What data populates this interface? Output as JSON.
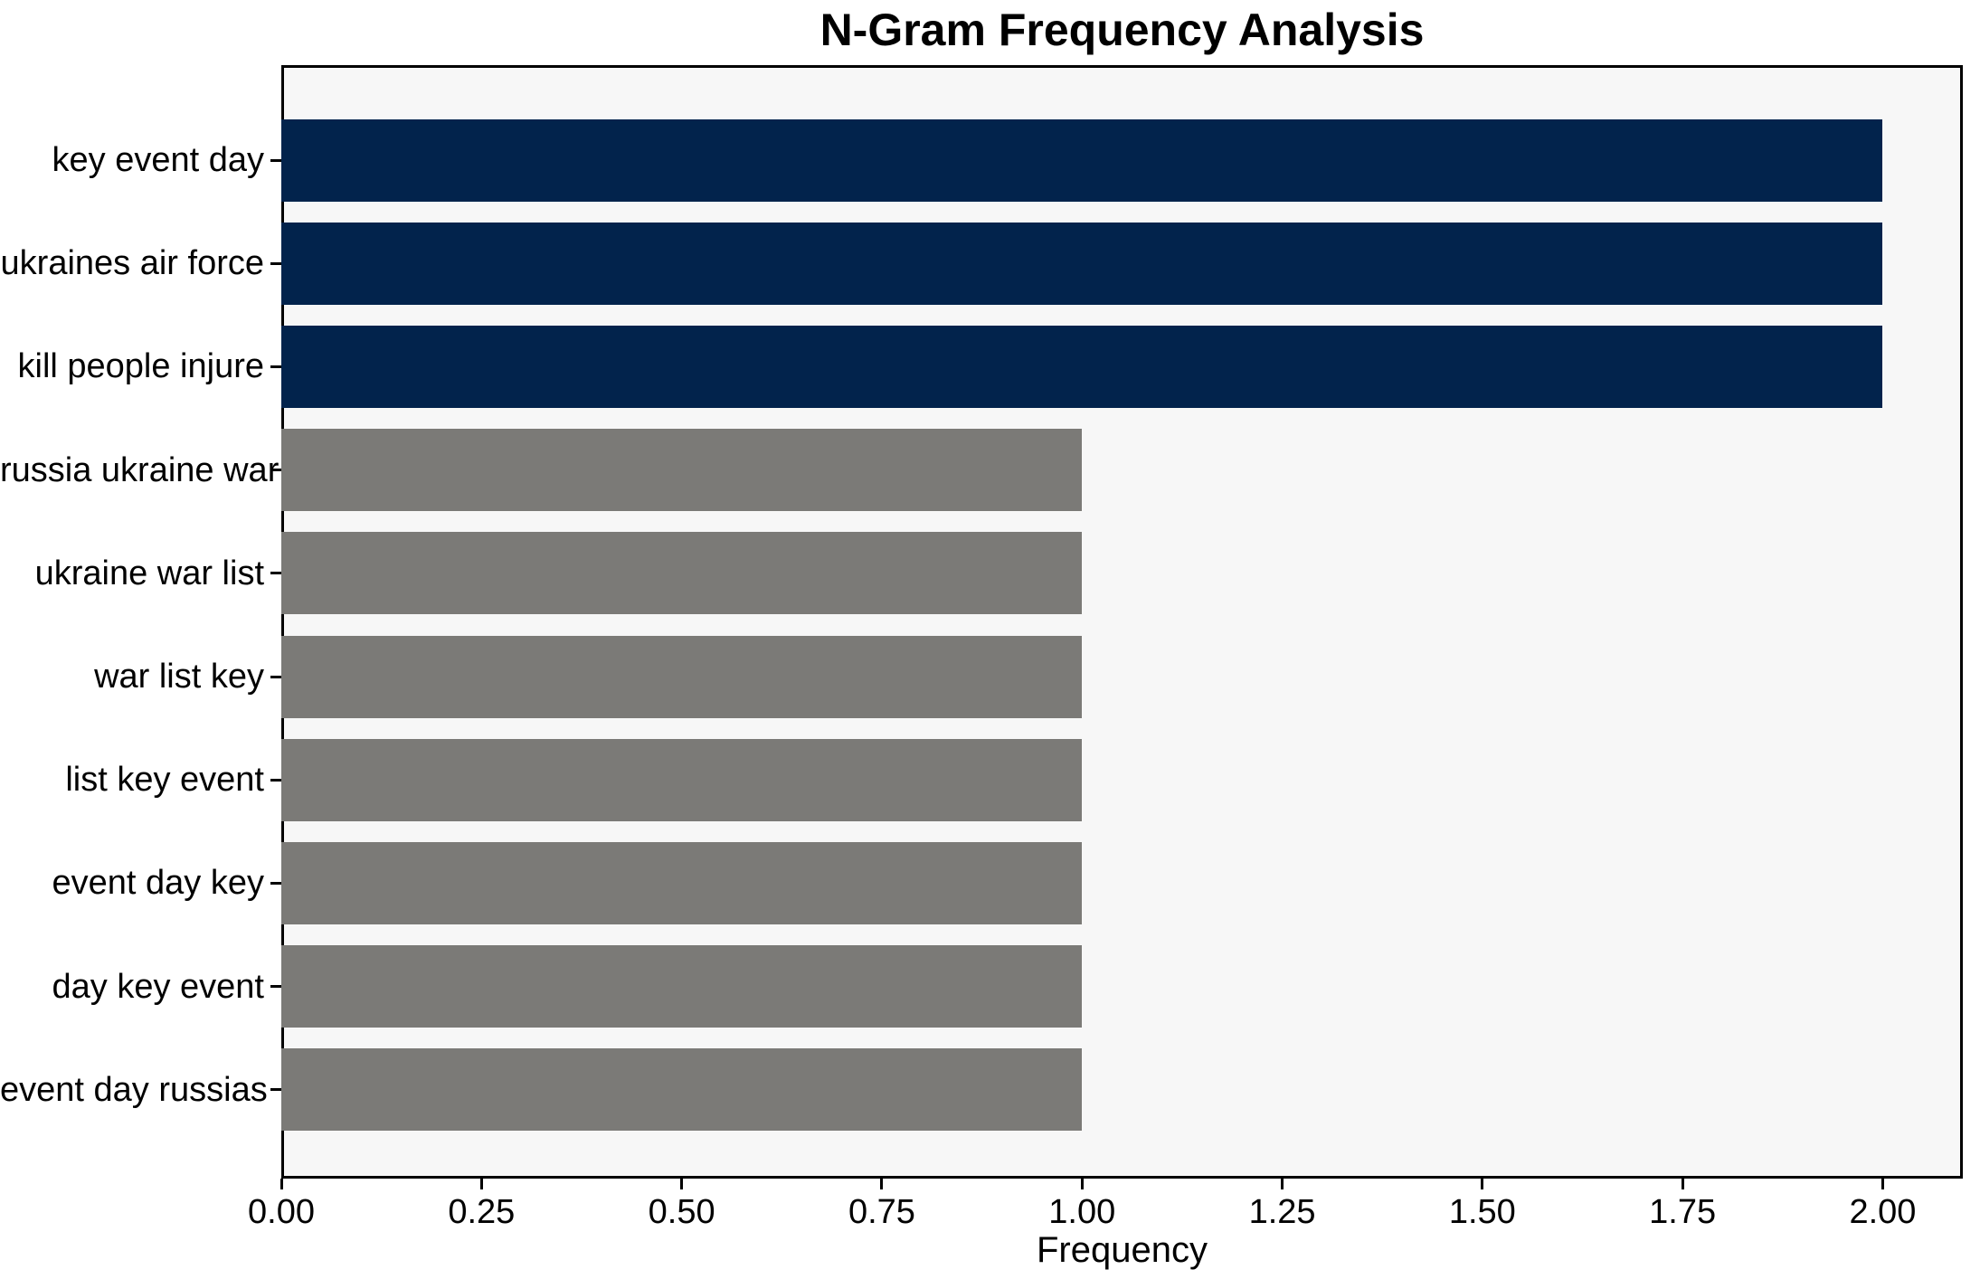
{
  "chart_data": {
    "type": "bar",
    "orientation": "horizontal",
    "title": "N-Gram Frequency Analysis",
    "xlabel": "Frequency",
    "ylabel": "",
    "categories": [
      "key event day",
      "ukraines air force",
      "kill people injure",
      "russia ukraine war",
      "ukraine war list",
      "war list key",
      "list key event",
      "event day key",
      "day key event",
      "event day russias"
    ],
    "values": [
      2,
      2,
      2,
      1,
      1,
      1,
      1,
      1,
      1,
      1
    ],
    "bar_colors": [
      "#02234c",
      "#02234c",
      "#02234c",
      "#7b7a77",
      "#7b7a77",
      "#7b7a77",
      "#7b7a77",
      "#7b7a77",
      "#7b7a77",
      "#7b7a77"
    ],
    "xlim": [
      0,
      2.1
    ],
    "xticks": [
      {
        "value": 0.0,
        "label": "0.00"
      },
      {
        "value": 0.25,
        "label": "0.25"
      },
      {
        "value": 0.5,
        "label": "0.50"
      },
      {
        "value": 0.75,
        "label": "0.75"
      },
      {
        "value": 1.0,
        "label": "1.00"
      },
      {
        "value": 1.25,
        "label": "1.25"
      },
      {
        "value": 1.5,
        "label": "1.50"
      },
      {
        "value": 1.75,
        "label": "1.75"
      },
      {
        "value": 2.0,
        "label": "2.00"
      }
    ],
    "grid": false,
    "legend": "none",
    "colors": {
      "highlight_bar": "#02234c",
      "default_bar": "#7b7a77",
      "plot_background": "#f7f7f7",
      "figure_background": "#ffffff",
      "spine": "#000000",
      "text": "#000000"
    }
  }
}
